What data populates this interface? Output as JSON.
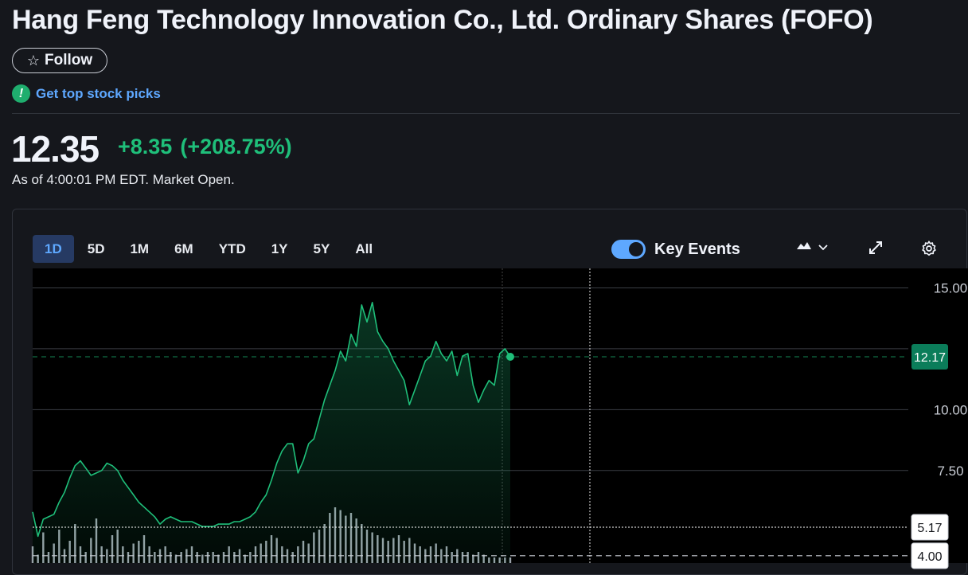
{
  "title": "Hang Feng Technology Innovation Co., Ltd. Ordinary Shares (FOFO)",
  "follow": {
    "icon": "star-icon",
    "label": "Follow"
  },
  "picks": {
    "icon": "exclamation-icon",
    "label": "Get top stock picks"
  },
  "quote": {
    "price": "12.35",
    "change": "+8.35",
    "change_pct": "(+208.75%)",
    "as_of": "As of 4:00:01 PM EDT. Market Open."
  },
  "colors": {
    "accent": "#5ea8ff",
    "up": "#1fbf7a",
    "tag": "#0b7d5a"
  },
  "chart_controls": {
    "ranges": [
      "1D",
      "5D",
      "1M",
      "6M",
      "YTD",
      "1Y",
      "5Y",
      "All"
    ],
    "active_range": "1D",
    "key_events_label": "Key Events",
    "key_events_on": true,
    "icons": [
      "mountain-chart-icon",
      "chevron-down-icon",
      "expand-icon",
      "gear-icon"
    ]
  },
  "chart_data": {
    "type": "area",
    "ylim": [
      3.7,
      15.8
    ],
    "y_ticks": [
      "15.00",
      "10.00",
      "7.50"
    ],
    "y_tick_values": [
      15,
      10,
      7.5
    ],
    "grid": true,
    "current_label": "12.17",
    "current_value": 12.17,
    "prev_close_label": "4.00",
    "prev_close_value": 4.0,
    "open_label": "5.17",
    "open_value": 5.17,
    "series": [
      {
        "values": [
          5.8,
          4.8,
          5.5,
          5.6,
          5.7,
          6.2,
          6.6,
          7.2,
          7.7,
          7.9,
          7.6,
          7.3,
          7.4,
          7.5,
          7.8,
          7.7,
          7.5,
          7.1,
          6.8,
          6.5,
          6.2,
          6.0,
          5.8,
          5.6,
          5.3,
          5.5,
          5.6,
          5.5,
          5.4,
          5.4,
          5.4,
          5.3,
          5.2,
          5.2,
          5.2,
          5.3,
          5.3,
          5.3,
          5.4,
          5.4,
          5.5,
          5.6,
          5.8,
          6.2,
          6.5,
          7.1,
          7.8,
          8.3,
          8.6,
          8.6,
          7.4,
          7.9,
          8.6,
          8.8,
          9.6,
          10.4,
          11.0,
          11.6,
          12.4,
          12.0,
          13.1,
          12.6,
          14.3,
          13.6,
          14.4,
          13.2,
          12.8,
          12.5,
          12.0,
          11.6,
          11.2,
          10.2,
          10.8,
          11.4,
          12.0,
          12.2,
          12.8,
          12.3,
          12.0,
          12.4,
          11.4,
          12.2,
          12.3,
          11.0,
          10.3,
          10.8,
          11.2,
          11.0,
          12.3,
          12.5,
          12.17
        ],
        "volumes": [
          0.3,
          0.15,
          0.55,
          0.2,
          0.35,
          0.6,
          0.25,
          0.4,
          0.7,
          0.3,
          0.2,
          0.45,
          0.8,
          0.3,
          0.25,
          0.5,
          0.6,
          0.3,
          0.2,
          0.35,
          0.4,
          0.5,
          0.3,
          0.2,
          0.25,
          0.3,
          0.2,
          0.15,
          0.2,
          0.25,
          0.3,
          0.2,
          0.15,
          0.2,
          0.2,
          0.15,
          0.2,
          0.3,
          0.2,
          0.25,
          0.15,
          0.2,
          0.3,
          0.35,
          0.4,
          0.5,
          0.45,
          0.3,
          0.25,
          0.2,
          0.3,
          0.4,
          0.35,
          0.55,
          0.6,
          0.7,
          0.9,
          1.0,
          0.95,
          0.85,
          0.9,
          0.8,
          0.7,
          0.6,
          0.55,
          0.5,
          0.45,
          0.4,
          0.45,
          0.5,
          0.4,
          0.45,
          0.35,
          0.3,
          0.25,
          0.3,
          0.35,
          0.25,
          0.3,
          0.2,
          0.25,
          0.2,
          0.2,
          0.15,
          0.2,
          0.15,
          0.1,
          0.1,
          0.1,
          0.1,
          0.1
        ]
      }
    ]
  }
}
